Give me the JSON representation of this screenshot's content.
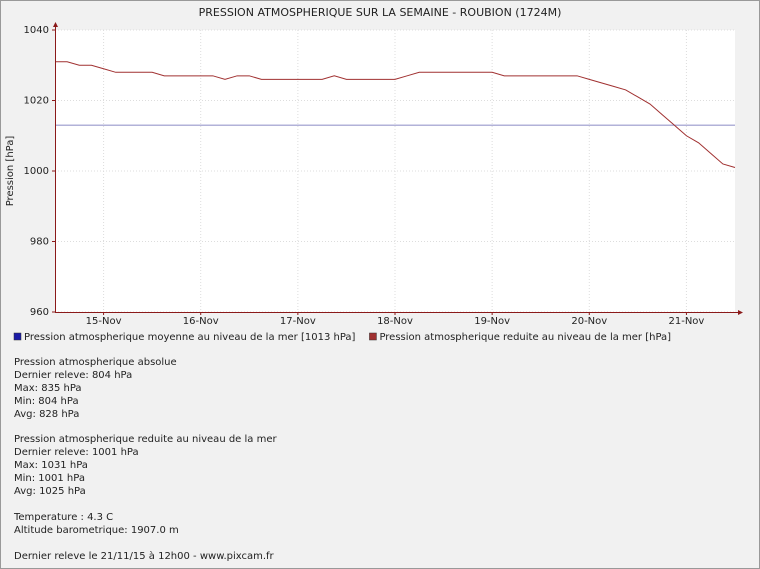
{
  "chart_data": {
    "type": "line",
    "title": "PRESSION ATMOSPHERIQUE SUR LA SEMAINE - ROUBION (1724M)",
    "y_label": "Pression [hPa]",
    "xlim": [
      14.5,
      21.5
    ],
    "xticks": [
      {
        "value": 15,
        "label": "15-Nov"
      },
      {
        "value": 16,
        "label": "16-Nov"
      },
      {
        "value": 17,
        "label": "17-Nov"
      },
      {
        "value": 18,
        "label": "18-Nov"
      },
      {
        "value": 19,
        "label": "19-Nov"
      },
      {
        "value": 20,
        "label": "20-Nov"
      },
      {
        "value": 21,
        "label": "21-Nov"
      }
    ],
    "ylim": [
      960,
      1040
    ],
    "yticks": [
      960,
      980,
      1000,
      1020,
      1040
    ],
    "grid": true,
    "reference_lines": [
      {
        "name": "Pression atmospherique moyenne au niveau de la mer [1013 hPa]",
        "value": 1013,
        "color": "#9999cc",
        "legend_color": "#1a1aa6"
      }
    ],
    "x": [
      14.5,
      14.625,
      14.75,
      14.875,
      15,
      15.125,
      15.25,
      15.375,
      15.5,
      15.625,
      15.75,
      15.875,
      16,
      16.125,
      16.25,
      16.375,
      16.5,
      16.625,
      16.75,
      16.875,
      17,
      17.125,
      17.25,
      17.375,
      17.5,
      17.625,
      17.75,
      17.875,
      18,
      18.125,
      18.25,
      18.375,
      18.5,
      18.625,
      18.75,
      18.875,
      19,
      19.125,
      19.25,
      19.375,
      19.5,
      19.625,
      19.75,
      19.875,
      20,
      20.125,
      20.25,
      20.375,
      20.5,
      20.625,
      20.75,
      20.875,
      21,
      21.125,
      21.25,
      21.375,
      21.5
    ],
    "series": [
      {
        "name": "Pression atmospherique reduite au niveau de la mer [hPa]",
        "color": "#a03030",
        "values": [
          1031,
          1031,
          1030,
          1030,
          1029,
          1028,
          1028,
          1028,
          1028,
          1027,
          1027,
          1027,
          1027,
          1027,
          1026,
          1027,
          1027,
          1026,
          1026,
          1026,
          1026,
          1026,
          1026,
          1027,
          1026,
          1026,
          1026,
          1026,
          1026,
          1027,
          1028,
          1028,
          1028,
          1028,
          1028,
          1028,
          1028,
          1027,
          1027,
          1027,
          1027,
          1027,
          1027,
          1027,
          1026,
          1025,
          1024,
          1023,
          1021,
          1019,
          1016,
          1013,
          1010,
          1008,
          1005,
          1002,
          1001
        ]
      }
    ]
  },
  "info": [
    [
      "Pression atmospherique absolue",
      "Dernier releve: 804 hPa",
      "Max: 835 hPa",
      "Min: 804 hPa",
      "Avg: 828 hPa"
    ],
    [
      "Pression atmospherique reduite au niveau de la mer",
      "Dernier releve: 1001 hPa",
      "Max: 1031 hPa",
      "Min: 1001 hPa",
      "Avg: 1025 hPa"
    ],
    [
      "Temperature : 4.3 C",
      "Altitude barometrique: 1907.0 m"
    ],
    [
      "Dernier releve le 21/11/15 à 12h00 - www.pixcam.fr"
    ]
  ]
}
